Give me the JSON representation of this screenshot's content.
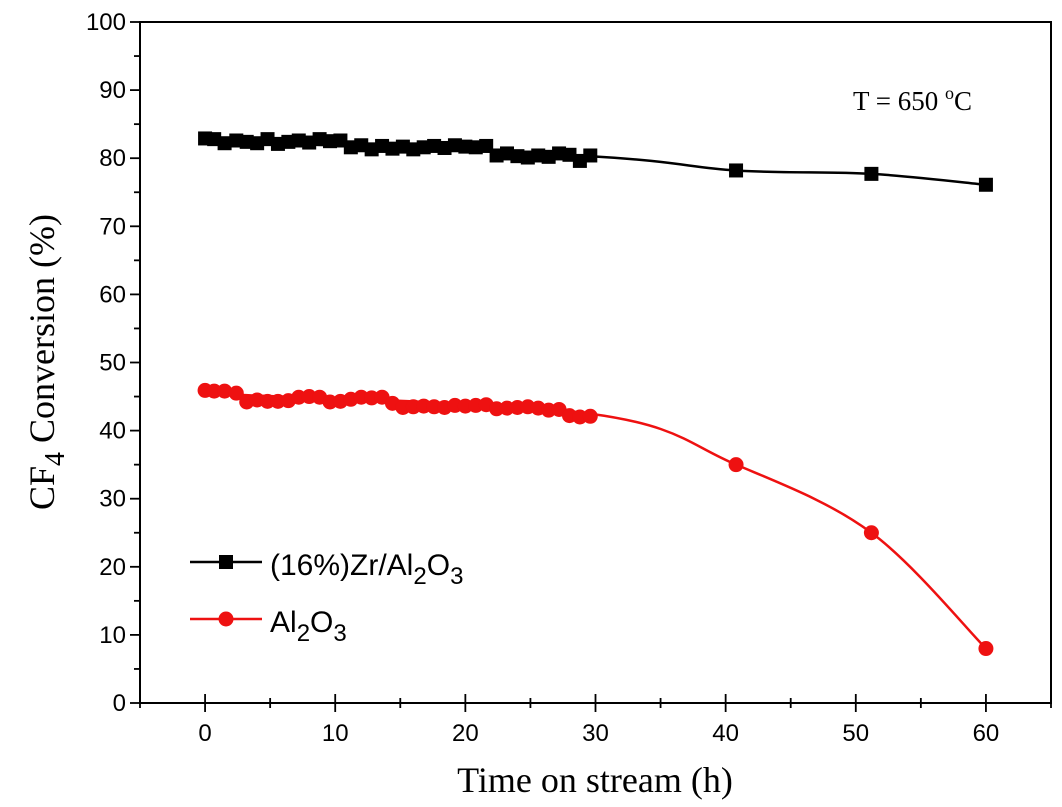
{
  "chart_data": {
    "type": "line",
    "xlabel": "Time on stream (h)",
    "ylabel": "CF4 Conversion (%)",
    "ylabel_parts": {
      "pre": "CF",
      "sub": "4",
      "post": " Conversion (%)"
    },
    "xlim": [
      -5,
      65
    ],
    "ylim": [
      0,
      100
    ],
    "x_ticks": [
      0,
      10,
      20,
      30,
      40,
      50,
      60
    ],
    "y_ticks": [
      0,
      10,
      20,
      30,
      40,
      50,
      60,
      70,
      80,
      90,
      100
    ],
    "annotation": {
      "text": "T = 650 oC",
      "pre": "T = 650 ",
      "sup": "o",
      "post": "C"
    },
    "legend_position": "lower-left",
    "series": [
      {
        "name": "(16%)Zr/Al2O3",
        "label_parts": [
          "(16%)Zr/Al",
          "2",
          "O",
          "3"
        ],
        "color": "#000000",
        "marker": "square",
        "x": [
          0,
          0.7,
          1.5,
          2.4,
          3.2,
          4,
          4.8,
          5.6,
          6.4,
          7.2,
          8,
          8.8,
          9.6,
          10.4,
          11.2,
          12,
          12.8,
          13.6,
          14.4,
          15.2,
          16,
          16.8,
          17.6,
          18.4,
          19.2,
          20,
          20.8,
          21.6,
          22.4,
          23.2,
          24,
          24.8,
          25.6,
          26.4,
          27.2,
          28,
          28.8,
          29.6,
          40.8,
          51.2,
          60
        ],
        "y": [
          82.9,
          82.8,
          82.2,
          82.6,
          82.4,
          82.2,
          82.8,
          82.1,
          82.4,
          82.6,
          82.3,
          82.8,
          82.5,
          82.6,
          81.6,
          81.9,
          81.3,
          81.8,
          81.4,
          81.7,
          81.3,
          81.6,
          81.8,
          81.5,
          81.9,
          81.7,
          81.6,
          81.8,
          80.4,
          80.7,
          80.3,
          80.1,
          80.4,
          80.2,
          80.7,
          80.5,
          79.6,
          80.4,
          78.2,
          77.7,
          76.1
        ]
      },
      {
        "name": "Al2O3",
        "label_parts": [
          "Al",
          "2",
          "O",
          "3"
        ],
        "color": "#ee1111",
        "marker": "circle",
        "x": [
          0,
          0.7,
          1.5,
          2.4,
          3.2,
          4,
          4.8,
          5.6,
          6.4,
          7.2,
          8,
          8.8,
          9.6,
          10.4,
          11.2,
          12,
          12.8,
          13.6,
          14.4,
          15.2,
          16,
          16.8,
          17.6,
          18.4,
          19.2,
          20,
          20.8,
          21.6,
          22.4,
          23.2,
          24,
          24.8,
          25.6,
          26.4,
          27.2,
          28,
          28.8,
          29.6,
          40.8,
          51.2,
          60
        ],
        "y": [
          45.9,
          45.8,
          45.8,
          45.5,
          44.2,
          44.5,
          44.3,
          44.3,
          44.4,
          44.9,
          45.0,
          44.9,
          44.2,
          44.3,
          44.6,
          44.9,
          44.8,
          44.9,
          44.0,
          43.4,
          43.5,
          43.6,
          43.5,
          43.4,
          43.7,
          43.6,
          43.7,
          43.8,
          43.2,
          43.3,
          43.4,
          43.5,
          43.3,
          43.0,
          43.1,
          42.2,
          42.0,
          42.1,
          35.0,
          25.0,
          8.0
        ]
      }
    ]
  }
}
